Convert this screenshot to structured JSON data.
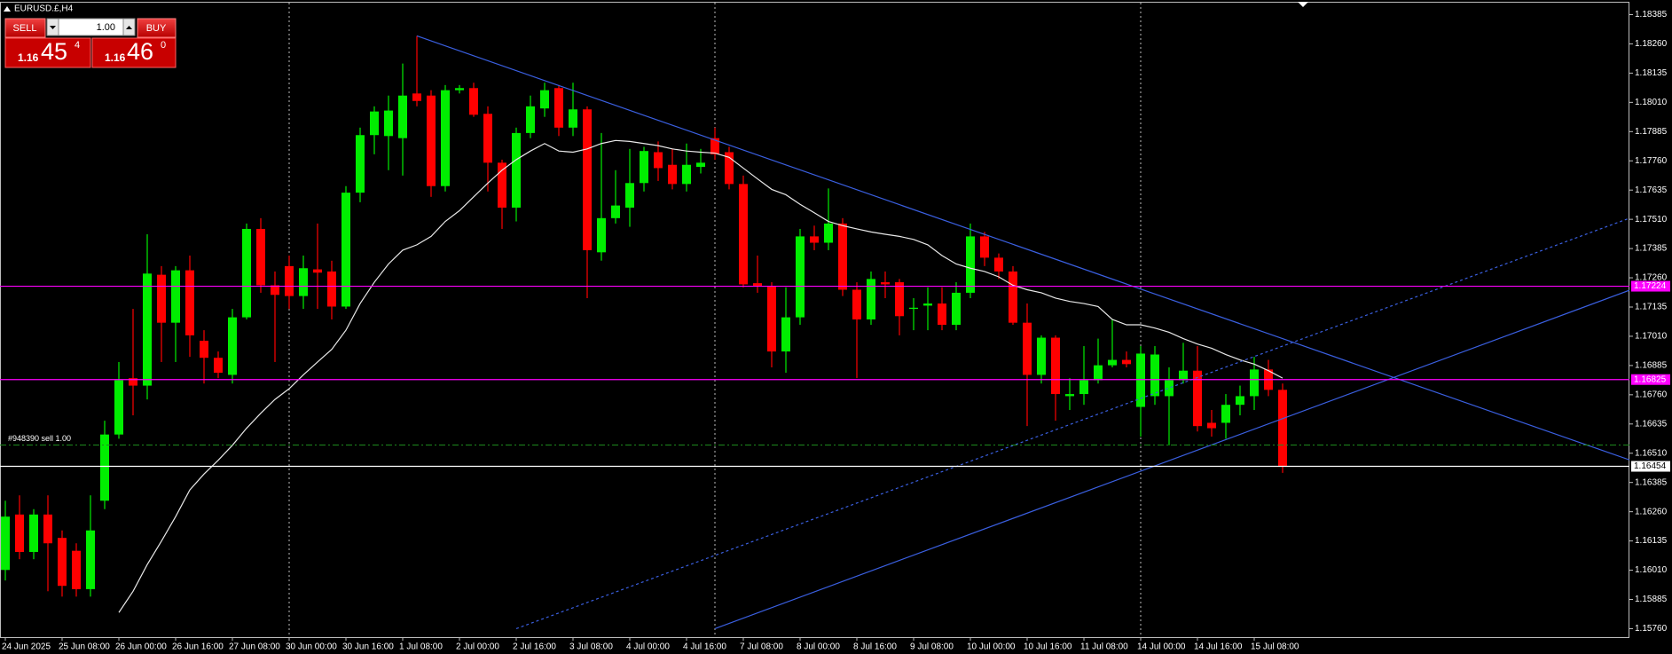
{
  "chart_data": {
    "type": "candlestick",
    "title": "EURUSD.£,H4",
    "up_color": "#00ee00",
    "down_color": "#ff0000",
    "categories": [
      "24 Jun 2025",
      null,
      null,
      null,
      "25 Jun 08:00",
      null,
      null,
      null,
      "26 Jun 00:00",
      null,
      null,
      null,
      "26 Jun 16:00",
      null,
      null,
      null,
      "27 Jun 08:00",
      null,
      null,
      null,
      "30 Jun 00:00",
      null,
      null,
      null,
      "30 Jun 16:00",
      null,
      null,
      null,
      "1 Jul 08:00",
      null,
      null,
      null,
      "2 Jul 00:00",
      null,
      null,
      null,
      "2 Jul 16:00",
      null,
      null,
      null,
      "3 Jul 08:00",
      null,
      null,
      null,
      "4 Jul 00:00",
      null,
      null,
      null,
      "4 Jul 16:00",
      null,
      null,
      null,
      "7 Jul 08:00",
      null,
      null,
      null,
      "8 Jul 00:00",
      null,
      null,
      null,
      "8 Jul 16:00",
      null,
      null,
      null,
      "9 Jul 08:00",
      null,
      null,
      null,
      "10 Jul 00:00",
      null,
      null,
      null,
      "10 Jul 16:00",
      null,
      null,
      null,
      "11 Jul 08:00",
      null,
      null,
      null,
      "14 Jul 00:00",
      null,
      null,
      null,
      "14 Jul 16:00",
      null,
      null,
      null,
      "15 Jul 08:00",
      null,
      null
    ],
    "open": [
      1.16011,
      1.16248,
      1.16088,
      1.16248,
      1.16148,
      1.16093,
      1.15929,
      1.16307,
      1.1659,
      1.16831,
      1.16799,
      1.17273,
      1.17068,
      1.17292,
      1.16991,
      1.16918,
      1.16845,
      1.17091,
      1.17469,
      1.17228,
      1.1731,
      1.17182,
      1.17296,
      1.17287,
      1.17137,
      1.17624,
      1.1787,
      1.17866,
      1.17857,
      1.18048,
      1.18039,
      1.17652,
      1.18062,
      1.18071,
      1.17961,
      1.17752,
      1.1756,
      1.17879,
      1.17984,
      1.18071,
      1.17902,
      1.1798,
      1.17369,
      1.17515,
      1.1756,
      1.17665,
      1.17797,
      1.17743,
      1.17661,
      1.17734,
      1.17857,
      1.17797,
      1.17661,
      1.17237,
      1.17223,
      1.16945,
      1.17091,
      1.17437,
      1.1741,
      1.17492,
      1.17209,
      1.17082,
      1.17241,
      1.17241,
      1.17127,
      1.17141,
      1.1715,
      1.17059,
      1.17196,
      1.17437,
      1.17346,
      1.17287,
      1.17068,
      1.16845,
      1.17004,
      1.16754,
      1.16763,
      1.16822,
      1.16886,
      1.16909,
      1.16708,
      1.16754,
      1.16754,
      1.16822,
      1.16863,
      1.1664,
      1.1664,
      1.16717,
      1.16754,
      1.16868,
      1.16781
    ],
    "high": [
      1.16307,
      1.1633,
      1.16271,
      1.1633,
      1.1618,
      1.16125,
      1.1633,
      1.16649,
      1.169,
      1.17127,
      1.17446,
      1.1731,
      1.1731,
      1.17355,
      1.17036,
      1.16945,
      1.17127,
      1.17492,
      1.17515,
      1.17287,
      1.17355,
      1.17355,
      1.17492,
      1.17333,
      1.17652,
      1.17902,
      1.17993,
      1.18039,
      1.18176,
      1.18294,
      1.18062,
      1.18084,
      1.18084,
      1.18094,
      1.17993,
      1.17765,
      1.17902,
      1.18039,
      1.18094,
      1.18084,
      1.18094,
      1.17993,
      1.17879,
      1.1772,
      1.17811,
      1.1782,
      1.17843,
      1.17811,
      1.17834,
      1.17811,
      1.17902,
      1.1782,
      1.17697,
      1.17355,
      1.17241,
      1.17219,
      1.17469,
      1.17483,
      1.17642,
      1.17515,
      1.17241,
      1.17287,
      1.17287,
      1.17255,
      1.17173,
      1.17219,
      1.17219,
      1.17241,
      1.17492,
      1.17456,
      1.17364,
      1.1731,
      1.1715,
      1.17014,
      1.17014,
      1.16831,
      1.16968,
      1.17,
      1.17082,
      1.16945,
      1.16968,
      1.16968,
      1.16877,
      1.16982,
      1.16968,
      1.16695,
      1.16763,
      1.16799,
      1.16922,
      1.16909,
      1.16808
    ],
    "low": [
      1.15966,
      1.16057,
      1.16057,
      1.1592,
      1.15897,
      1.15897,
      1.15897,
      1.16271,
      1.16572,
      1.16672,
      1.1674,
      1.169,
      1.169,
      1.16922,
      1.16808,
      1.16831,
      1.16808,
      1.17082,
      1.17196,
      1.169,
      1.17127,
      1.17127,
      1.17127,
      1.17082,
      1.17127,
      1.17583,
      1.17788,
      1.1772,
      1.17697,
      1.17993,
      1.17606,
      1.17629,
      1.18048,
      1.17948,
      1.17629,
      1.17469,
      1.17501,
      1.17857,
      1.17948,
      1.17866,
      1.17866,
      1.17173,
      1.17333,
      1.17492,
      1.17478,
      1.17629,
      1.17674,
      1.17638,
      1.17629,
      1.17706,
      1.17765,
      1.17638,
      1.17219,
      1.17196,
      1.16877,
      1.16854,
      1.17059,
      1.17378,
      1.17378,
      1.17182,
      1.16831,
      1.17059,
      1.17173,
      1.17014,
      1.17036,
      1.17036,
      1.17036,
      1.17036,
      1.17173,
      1.1731,
      1.17255,
      1.17059,
      1.16626,
      1.16808,
      1.16649,
      1.16695,
      1.16717,
      1.16808,
      1.16877,
      1.16877,
      1.16581,
      1.16717,
      1.16544,
      1.16808,
      1.16603,
      1.16581,
      1.16572,
      1.16672,
      1.16695,
      1.16754,
      1.16426
    ],
    "close": [
      1.16239,
      1.16088,
      1.16248,
      1.16125,
      1.15943,
      1.15929,
      1.1618,
      1.1659,
      1.16822,
      1.16799,
      1.17278,
      1.17068,
      1.17292,
      1.17014,
      1.16918,
      1.16854,
      1.17091,
      1.17469,
      1.17228,
      1.17187,
      1.17182,
      1.17301,
      1.17282,
      1.17137,
      1.17624,
      1.1787,
      1.17971,
      1.17975,
      1.18039,
      1.18016,
      1.17652,
      1.18062,
      1.18071,
      1.17957,
      1.17752,
      1.1756,
      1.17879,
      1.17993,
      1.18062,
      1.17902,
      1.1798,
      1.17378,
      1.17515,
      1.17569,
      1.17665,
      1.17802,
      1.17729,
      1.17661,
      1.17743,
      1.17752,
      1.17788,
      1.17661,
      1.17232,
      1.17223,
      1.16945,
      1.17091,
      1.17437,
      1.1741,
      1.17492,
      1.17209,
      1.17082,
      1.17255,
      1.17232,
      1.17096,
      1.17132,
      1.1715,
      1.17059,
      1.17196,
      1.17437,
      1.17346,
      1.17287,
      1.17068,
      1.16845,
      1.17004,
      1.16763,
      1.16763,
      1.16822,
      1.16886,
      1.16909,
      1.16891,
      1.16936,
      1.16932,
      1.16822,
      1.16863,
      1.16626,
      1.16617,
      1.16717,
      1.16754,
      1.16868,
      1.16781,
      1.16454
    ],
    "ma": {
      "color": "#e8e8e8",
      "values": [
        null,
        null,
        null,
        null,
        null,
        null,
        null,
        null,
        1.15829,
        1.1592,
        1.16034,
        1.16134,
        1.16239,
        1.16353,
        1.16421,
        1.1648,
        1.16544,
        1.16617,
        1.16681,
        1.1674,
        1.16786,
        1.16845,
        1.169,
        1.16954,
        1.17036,
        1.1715,
        1.17241,
        1.17319,
        1.17378,
        1.17401,
        1.17437,
        1.17501,
        1.17547,
        1.17606,
        1.17665,
        1.1772,
        1.17765,
        1.17802,
        1.17834,
        1.17802,
        1.17797,
        1.17811,
        1.17834,
        1.17847,
        1.17843,
        1.17834,
        1.17825,
        1.17811,
        1.17802,
        1.17797,
        1.17793,
        1.17775,
        1.17729,
        1.17683,
        1.17638,
        1.17615,
        1.17574,
        1.17538,
        1.17501,
        1.17483,
        1.17469,
        1.17456,
        1.17446,
        1.17437,
        1.17424,
        1.17401,
        1.17355,
        1.17319,
        1.17301,
        1.17287,
        1.17264,
        1.17228,
        1.17209,
        1.17196,
        1.17173,
        1.17159,
        1.1715,
        1.17137,
        1.17082,
        1.17059,
        1.17059,
        1.17045,
        1.17027,
        1.17,
        1.16977,
        1.16959,
        1.16932,
        1.16909,
        1.16891,
        1.16863,
        1.16831
      ]
    },
    "ylim": [
      1.1572,
      1.1844
    ],
    "yticks": [
      1.18385,
      {
        "value": 1.1826,
        "label": "1.18260"
      },
      1.18135,
      {
        "value": 1.1801,
        "label": "1.18010"
      },
      1.17885,
      {
        "value": 1.1776,
        "label": "1.17760"
      },
      1.17635,
      {
        "value": 1.1751,
        "label": "1.17510"
      },
      1.17385,
      {
        "value": 1.1726,
        "label": "1.17260"
      },
      1.17135,
      {
        "value": 1.1701,
        "label": "1.17010"
      },
      1.16885,
      {
        "value": 1.1676,
        "label": "1.16760"
      },
      1.16635,
      {
        "value": 1.1651,
        "label": "1.16510"
      },
      1.16385,
      {
        "value": 1.1626,
        "label": "1.16260"
      },
      1.16135,
      {
        "value": 1.1601,
        "label": "1.16010"
      },
      1.15885,
      {
        "value": 1.1576,
        "label": "1.15760"
      }
    ],
    "hlines": [
      {
        "value": 1.17224,
        "color": "#ff00ff"
      },
      {
        "value": 1.16825,
        "color": "#ff00ff"
      },
      {
        "value": 1.16454,
        "color": "#ffffff"
      }
    ],
    "order_line": {
      "value": 1.16545,
      "label": "#948390 sell 1.00",
      "color": "#1e8a1e"
    },
    "trendlines": [
      {
        "color": "#3a5fe0",
        "style": "solid",
        "points": [
          [
            29,
            1.18294
          ],
          [
            90,
            1.17
          ]
        ]
      },
      {
        "color": "#3a5fe0",
        "style": "solid",
        "points": [
          [
            50,
            1.1576
          ],
          [
            90,
            1.16658
          ]
        ]
      },
      {
        "color": "#3a5fe0",
        "style": "dotted",
        "points": [
          [
            36,
            1.1576
          ],
          [
            90,
            1.16968
          ]
        ]
      }
    ]
  },
  "trade_panel": {
    "sell": "SELL",
    "buy": "BUY",
    "lot": "1.00",
    "bid": {
      "prefix": "1.16",
      "big": "45",
      "sup": "4"
    },
    "ask": {
      "prefix": "1.16",
      "big": "46",
      "sup": "0"
    }
  }
}
